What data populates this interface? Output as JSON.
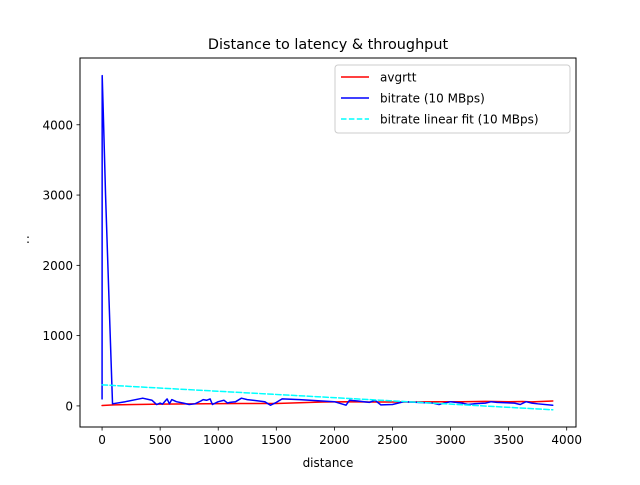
{
  "chart_data": {
    "type": "line",
    "title": "Distance to latency & throughput",
    "xlabel": "distance",
    "ylabel": ":",
    "xlim": [
      -190,
      4080
    ],
    "ylim": [
      -300,
      4950
    ],
    "x_ticks": [
      0,
      500,
      1000,
      1500,
      2000,
      2500,
      3000,
      3500,
      4000
    ],
    "y_ticks": [
      0,
      1000,
      2000,
      3000,
      4000
    ],
    "grid": false,
    "legend_position": "top-right",
    "series": [
      {
        "name": "avgrtt",
        "color": "#ff0000",
        "dash": "solid",
        "x": [
          0,
          100,
          500,
          900,
          1200,
          1500,
          1900,
          2100,
          2300,
          2600,
          2900,
          3100,
          3300,
          3500,
          3620,
          3700,
          3880
        ],
        "y": [
          5,
          15,
          25,
          30,
          35,
          35,
          55,
          60,
          55,
          55,
          60,
          60,
          65,
          60,
          62,
          58,
          70
        ]
      },
      {
        "name": "bitrate (10 MBps)",
        "color": "#0000ff",
        "dash": "solid",
        "x": [
          0,
          1,
          10,
          30,
          60,
          90,
          200,
          350,
          430,
          470,
          500,
          520,
          560,
          580,
          600,
          640,
          700,
          750,
          800,
          850,
          870,
          900,
          930,
          950,
          1000,
          1050,
          1080,
          1100,
          1150,
          1200,
          1250,
          1400,
          1450,
          1500,
          1550,
          1700,
          2000,
          2100,
          2130,
          2200,
          2300,
          2350,
          2400,
          2500,
          2600,
          2850,
          2900,
          3000,
          3100,
          3150,
          3200,
          3300,
          3350,
          3400,
          3550,
          3600,
          3650,
          3700,
          3750,
          3880
        ],
        "y": [
          100,
          4700,
          4200,
          3000,
          1500,
          30,
          60,
          110,
          80,
          20,
          40,
          25,
          100,
          30,
          90,
          60,
          40,
          20,
          30,
          70,
          90,
          80,
          100,
          20,
          60,
          80,
          40,
          50,
          60,
          110,
          90,
          60,
          10,
          50,
          100,
          90,
          60,
          10,
          80,
          70,
          50,
          80,
          15,
          20,
          60,
          40,
          20,
          60,
          40,
          20,
          30,
          40,
          60,
          50,
          40,
          20,
          60,
          40,
          30,
          10
        ]
      },
      {
        "name": "bitrate linear fit (10 MBps)",
        "color": "#00ffff",
        "dash": "dashed",
        "x": [
          0,
          3880
        ],
        "y": [
          300,
          -55
        ]
      }
    ]
  }
}
